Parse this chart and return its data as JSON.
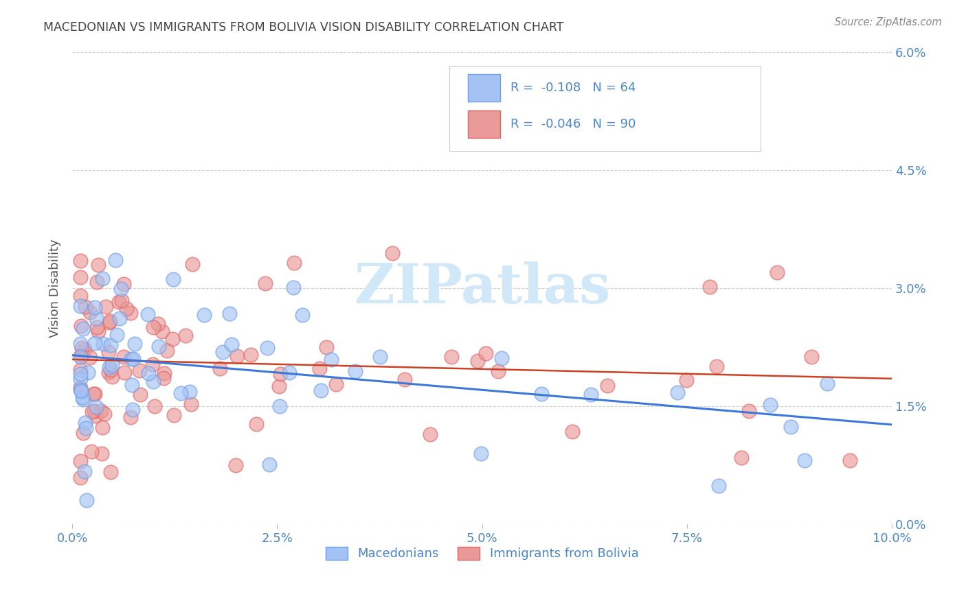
{
  "title": "MACEDONIAN VS IMMIGRANTS FROM BOLIVIA VISION DISABILITY CORRELATION CHART",
  "source": "Source: ZipAtlas.com",
  "ylabel": "Vision Disability",
  "xlim": [
    0.0,
    0.1
  ],
  "ylim": [
    0.0,
    0.06
  ],
  "xtick_vals": [
    0.0,
    0.025,
    0.05,
    0.075,
    0.1
  ],
  "xtick_labels": [
    "0.0%",
    "2.5%",
    "5.0%",
    "7.5%",
    "10.0%"
  ],
  "ytick_vals": [
    0.0,
    0.015,
    0.03,
    0.045,
    0.06
  ],
  "ytick_labels": [
    "0.0%",
    "1.5%",
    "3.0%",
    "4.5%",
    "6.0%"
  ],
  "watermark": "ZIPatlas",
  "legend_blue_label": "Macedonians",
  "legend_pink_label": "Immigrants from Bolivia",
  "blue_R": "-0.108",
  "blue_N": "64",
  "pink_R": "-0.046",
  "pink_N": "90",
  "blue_fill": "#a4c2f4",
  "blue_edge": "#6d9eeb",
  "pink_fill": "#ea9999",
  "pink_edge": "#e06666",
  "blue_line_color": "#3c78d8",
  "pink_line_color": "#cc4125",
  "background_color": "#ffffff",
  "grid_color": "#cccccc",
  "title_color": "#434343",
  "axis_tick_color": "#4a86c8",
  "legend_text_dark": "#333333",
  "legend_text_blue": "#4a86c8",
  "watermark_color": "#d0e8f8"
}
